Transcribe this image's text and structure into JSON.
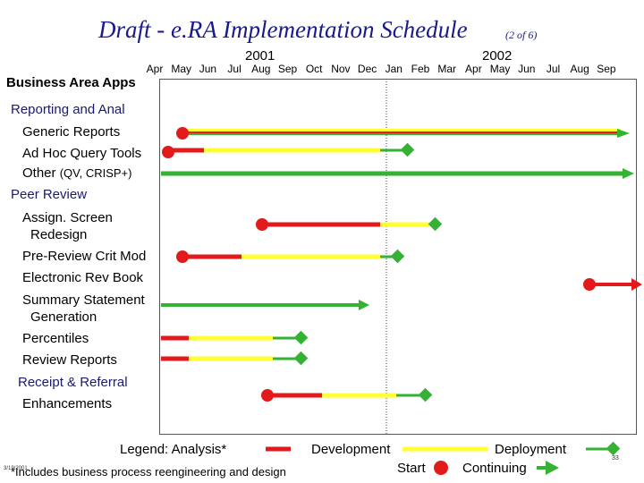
{
  "title": "Draft - e.RA Implementation Schedule",
  "title_sub": "(2 of 6)",
  "years": [
    "2001",
    "2002"
  ],
  "months": [
    "Apr",
    "May",
    "Jun",
    "Jul",
    "Aug",
    "Sep",
    "Oct",
    "Nov",
    "Dec",
    "Jan",
    "Feb",
    "Mar",
    "Apr",
    "May",
    "Jun",
    "Jul",
    "Aug",
    "Sep"
  ],
  "row_header": "Business Area Apps",
  "rows": {
    "reporting": "Reporting and Anal",
    "generic_reports": "Generic Reports",
    "ad_hoc": "Ad Hoc Query Tools",
    "other": "Other",
    "other_note": "(QV, CRISP+)",
    "peer_review": "Peer Review",
    "assign_1": "Assign. Screen",
    "assign_2": "Redesign",
    "pre_review": "Pre-Review Crit Mod",
    "electronic_rev": "Electronic Rev Book",
    "summary_1": "Summary Statement",
    "summary_2": "Generation",
    "percentiles": "Percentiles",
    "review_reports": "Review Reports",
    "receipt": "Receipt & Referral",
    "enhancements": "Enhancements"
  },
  "legend": {
    "label": "Legend:",
    "analysis": "Analysis*",
    "development": "Development",
    "deployment": "Deployment",
    "start": "Start",
    "continuing": "Continuing"
  },
  "colors": {
    "title": "#1a1a8c",
    "analysis": "#e31a1c",
    "development": "#ffff33",
    "deployment": "#33b233",
    "start_dot": "#e31a1c",
    "continuing_arrow": "#33b233"
  },
  "footnote": "*Includes business process reengineering and design",
  "date_stamp": "3/19/2001",
  "page_number": "33"
}
